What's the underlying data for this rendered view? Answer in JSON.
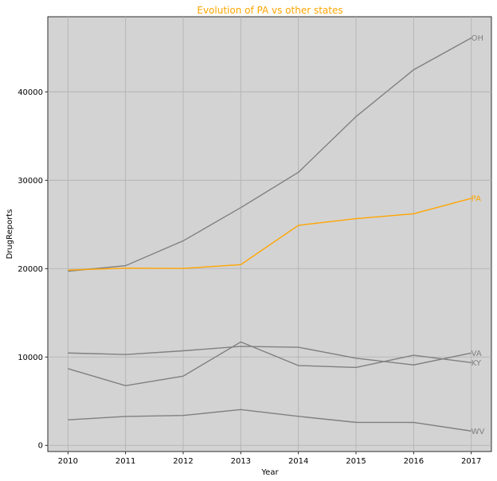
{
  "chart_data": {
    "type": "line",
    "title": "Evolution of PA vs other states",
    "xlabel": "Year",
    "ylabel": "DrugReports",
    "x": [
      2010,
      2011,
      2012,
      2013,
      2014,
      2015,
      2016,
      2017
    ],
    "xlim": [
      2009.65,
      2017.35
    ],
    "ylim": [
      -700,
      48500
    ],
    "yticks": [
      0,
      10000,
      20000,
      30000,
      40000
    ],
    "grid": true,
    "background": "#d3d3d3",
    "highlight_color": "#ffa500",
    "other_color": "#808080",
    "series": [
      {
        "name": "OH",
        "highlight": false,
        "values": [
          19700,
          20330,
          23140,
          26900,
          30900,
          37200,
          42500,
          46100
        ]
      },
      {
        "name": "PA",
        "highlight": true,
        "values": [
          19830,
          20050,
          20020,
          20450,
          24900,
          25650,
          26200,
          27950
        ]
      },
      {
        "name": "VA",
        "highlight": false,
        "values": [
          10450,
          10280,
          10700,
          11200,
          11100,
          9860,
          9100,
          10450
        ]
      },
      {
        "name": "KY",
        "highlight": false,
        "values": [
          8680,
          6750,
          7830,
          11700,
          9030,
          8810,
          10200,
          9360
        ]
      },
      {
        "name": "WV",
        "highlight": false,
        "values": [
          2890,
          3270,
          3380,
          4050,
          3280,
          2600,
          2590,
          1620
        ]
      }
    ]
  }
}
